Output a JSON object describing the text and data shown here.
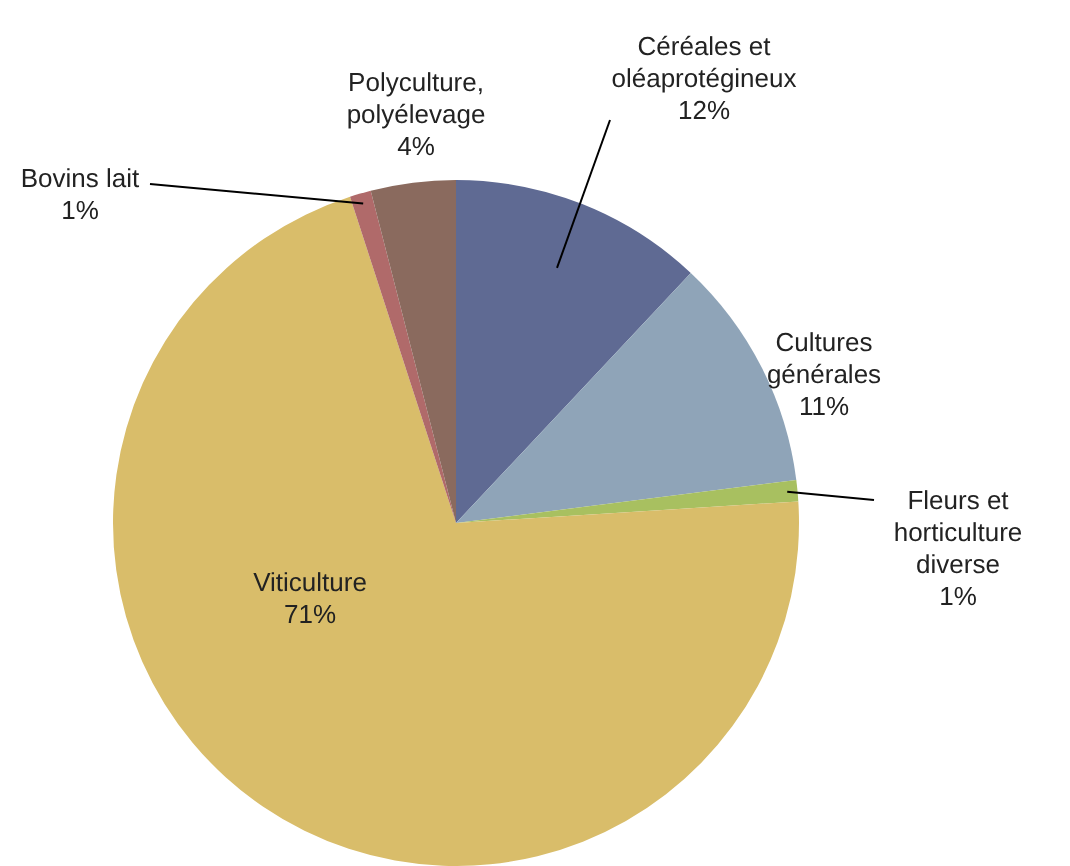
{
  "chart_data": {
    "type": "pie",
    "categories": [
      "Céréales et oléaprotégineux",
      "Cultures générales",
      "Fleurs et horticulture diverse",
      "Viticulture",
      "Bovins lait",
      "Polyculture, polyélevage"
    ],
    "values": [
      12,
      11,
      1,
      71,
      1,
      4
    ],
    "value_labels": [
      "12%",
      "11%",
      "1%",
      "71%",
      "1%",
      "4%"
    ],
    "colors": [
      "#5f6a93",
      "#8fa4b8",
      "#a8c060",
      "#d9bd6a",
      "#b06a6a",
      "#8a6a5e"
    ],
    "legend": false
  }
}
